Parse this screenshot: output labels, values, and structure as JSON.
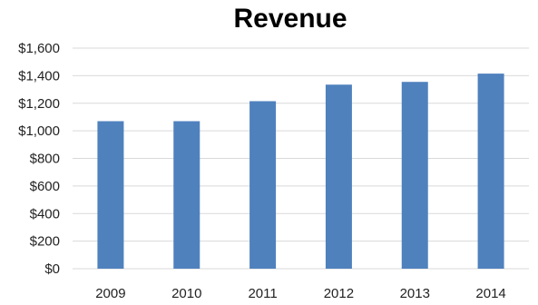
{
  "chart_data": {
    "type": "bar",
    "title": "Revenue",
    "categories": [
      "2009",
      "2010",
      "2011",
      "2012",
      "2013",
      "2014"
    ],
    "values": [
      1070,
      1070,
      1215,
      1335,
      1355,
      1415
    ],
    "ylim": [
      0,
      1600
    ],
    "yticks": [
      0,
      200,
      400,
      600,
      800,
      1000,
      1200,
      1400,
      1600
    ],
    "ytick_labels": [
      "$0",
      "$200",
      "$400",
      "$600",
      "$800",
      "$1,000",
      "$1,200",
      "$1,400",
      "$1,600"
    ],
    "xlabel": "",
    "ylabel": "",
    "grid": true,
    "legend": "none",
    "bar_color": "#4f81bd",
    "grid_color": "#d9d9d9"
  }
}
